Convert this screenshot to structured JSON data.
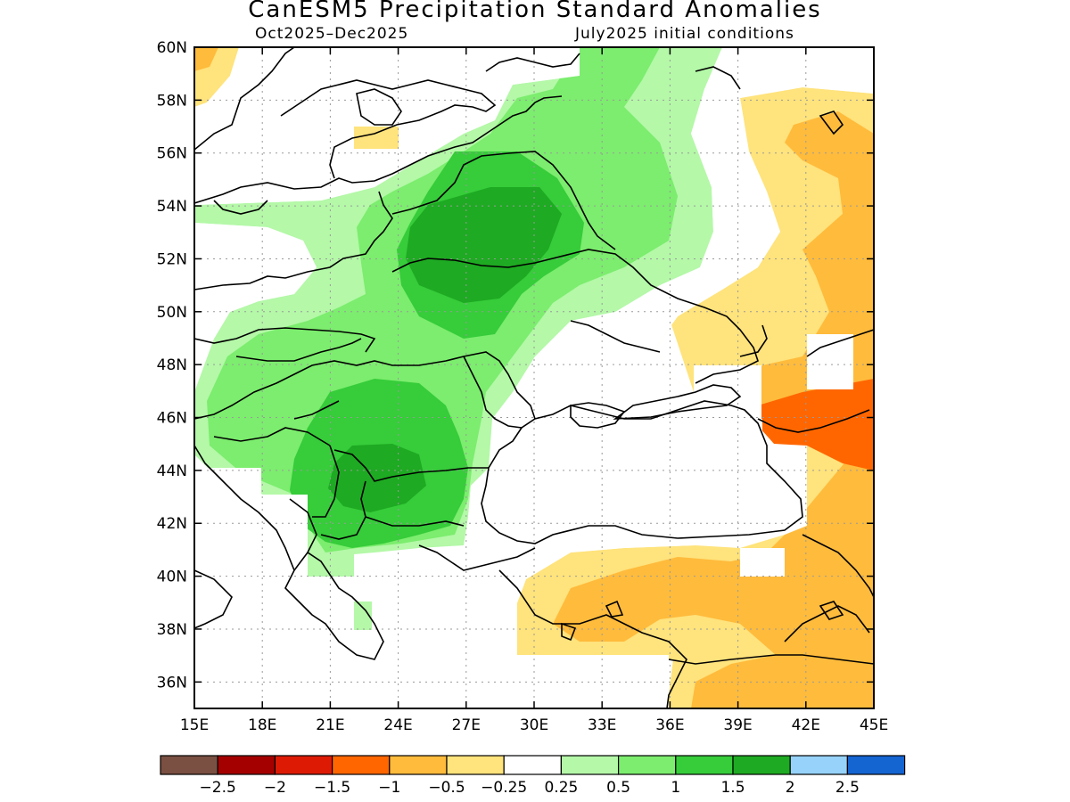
{
  "title": "CanESM5 Precipitation Standard Anomalies",
  "subtitle_left": "Oct2025–Dec2025",
  "subtitle_right": "July2025 initial conditions",
  "map": {
    "lon_range": [
      15,
      45
    ],
    "lat_range": [
      35,
      60
    ],
    "lon_ticks": [
      "15E",
      "18E",
      "21E",
      "24E",
      "27E",
      "30E",
      "33E",
      "36E",
      "39E",
      "42E",
      "45E"
    ],
    "lat_ticks": [
      "60N",
      "58N",
      "56N",
      "54N",
      "52N",
      "50N",
      "48N",
      "46N",
      "44N",
      "42N",
      "40N",
      "38N",
      "36N"
    ],
    "grid": "dotted"
  },
  "colorbar": {
    "colors": [
      "#7a5043",
      "#a50000",
      "#dd1b05",
      "#ff6600",
      "#ffbb3c",
      "#ffe37c",
      "#ffffff",
      "#b4f8a8",
      "#7ced6e",
      "#36cc3a",
      "#1eaa22",
      "#96d2fa",
      "#1464d2"
    ],
    "labels": [
      "−2.5",
      "−2",
      "−1.5",
      "−1",
      "−0.5",
      "−0.25",
      "0.25",
      "0.5",
      "1",
      "1.5",
      "2",
      "2.5"
    ]
  }
}
